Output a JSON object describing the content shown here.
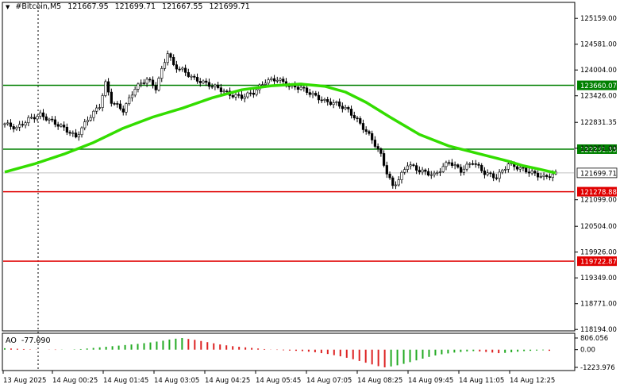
{
  "header": {
    "symbol": "#Bitcoin,M5",
    "open": "121667.95",
    "high": "121699.71",
    "low": "121667.55",
    "close": "121699.71"
  },
  "oscillator": {
    "name": "AO",
    "value": "-77.090",
    "axis_labels": [
      "806.056",
      "0.00",
      "-1223.976"
    ]
  },
  "chart_data": {
    "type": "candlestick",
    "price_axis": {
      "range": [
        118180,
        125500
      ],
      "ticks": [
        125159.0,
        124581.0,
        124004.0,
        123426.0,
        122831.35,
        122251.0,
        121099.0,
        120504.0,
        119926.0,
        119349.0,
        118771.0,
        118194.0
      ]
    },
    "time_axis": [
      "13 Aug 2025",
      "14 Aug 00:25",
      "14 Aug 01:45",
      "14 Aug 03:05",
      "14 Aug 04:25",
      "14 Aug 05:45",
      "14 Aug 07:05",
      "14 Aug 08:25",
      "14 Aug 09:45",
      "14 Aug 11:05",
      "14 Aug 12:25"
    ],
    "levels": [
      {
        "price": 123660.07,
        "label": "123660.07",
        "color": "#008000"
      },
      {
        "price": 122231.35,
        "label": "122231.35",
        "color": "#008000"
      },
      {
        "price": 121278.88,
        "label": "121278.88",
        "color": "#e00000"
      },
      {
        "price": 119722.87,
        "label": "119722.87",
        "color": "#e00000"
      }
    ],
    "current_price": {
      "price": 121699.71,
      "label": "121699.71"
    },
    "moving_average": [
      [
        0,
        121720
      ],
      [
        10,
        121900
      ],
      [
        20,
        122120
      ],
      [
        30,
        122380
      ],
      [
        40,
        122700
      ],
      [
        50,
        122950
      ],
      [
        60,
        123150
      ],
      [
        70,
        123380
      ],
      [
        80,
        123560
      ],
      [
        90,
        123650
      ],
      [
        100,
        123690
      ],
      [
        108,
        123640
      ],
      [
        115,
        123510
      ],
      [
        122,
        123280
      ],
      [
        130,
        122950
      ],
      [
        140,
        122560
      ],
      [
        150,
        122300
      ],
      [
        160,
        122130
      ],
      [
        170,
        121960
      ],
      [
        175,
        121860
      ],
      [
        180,
        121790
      ],
      [
        186,
        121700
      ]
    ],
    "price_path": [
      [
        0,
        122800
      ],
      [
        4,
        122700
      ],
      [
        8,
        122900
      ],
      [
        12,
        123000
      ],
      [
        16,
        122850
      ],
      [
        20,
        122700
      ],
      [
        24,
        122500
      ],
      [
        28,
        122900
      ],
      [
        32,
        123200
      ],
      [
        34,
        123700
      ],
      [
        36,
        123300
      ],
      [
        40,
        123100
      ],
      [
        44,
        123600
      ],
      [
        48,
        123800
      ],
      [
        51,
        123600
      ],
      [
        53,
        124000
      ],
      [
        55,
        124400
      ],
      [
        57,
        124100
      ],
      [
        60,
        124000
      ],
      [
        64,
        123800
      ],
      [
        68,
        123700
      ],
      [
        72,
        123600
      ],
      [
        76,
        123450
      ],
      [
        80,
        123400
      ],
      [
        84,
        123500
      ],
      [
        88,
        123750
      ],
      [
        92,
        123800
      ],
      [
        96,
        123650
      ],
      [
        100,
        123600
      ],
      [
        104,
        123450
      ],
      [
        108,
        123300
      ],
      [
        112,
        123250
      ],
      [
        116,
        123100
      ],
      [
        120,
        122800
      ],
      [
        124,
        122450
      ],
      [
        127,
        122100
      ],
      [
        129,
        121700
      ],
      [
        131,
        121400
      ],
      [
        133,
        121550
      ],
      [
        136,
        121900
      ],
      [
        140,
        121750
      ],
      [
        145,
        121650
      ],
      [
        150,
        121950
      ],
      [
        154,
        121750
      ],
      [
        158,
        121950
      ],
      [
        162,
        121700
      ],
      [
        166,
        121600
      ],
      [
        170,
        121900
      ],
      [
        174,
        121800
      ],
      [
        178,
        121700
      ],
      [
        182,
        121600
      ],
      [
        186,
        121680
      ]
    ],
    "ao_values": [
      100,
      80,
      60,
      40,
      20,
      10,
      0,
      -10,
      -20,
      -10,
      0,
      20,
      40,
      80,
      120,
      160,
      200,
      240,
      280,
      320,
      360,
      400,
      450,
      500,
      560,
      620,
      700,
      760,
      806,
      740,
      680,
      600,
      520,
      440,
      360,
      300,
      240,
      200,
      160,
      120,
      80,
      40,
      10,
      -20,
      -40,
      -60,
      -80,
      -100,
      -140,
      -180,
      -240,
      -300,
      -380,
      -460,
      -560,
      -660,
      -780,
      -900,
      -1020,
      -1140,
      -1223,
      -1160,
      -1080,
      -980,
      -860,
      -740,
      -620,
      -500,
      -400,
      -320,
      -260,
      -200,
      -160,
      -120,
      -100,
      -120,
      -160,
      -200,
      -240,
      -220,
      -180,
      -140,
      -100,
      -80,
      -60,
      -40,
      -77
    ]
  }
}
